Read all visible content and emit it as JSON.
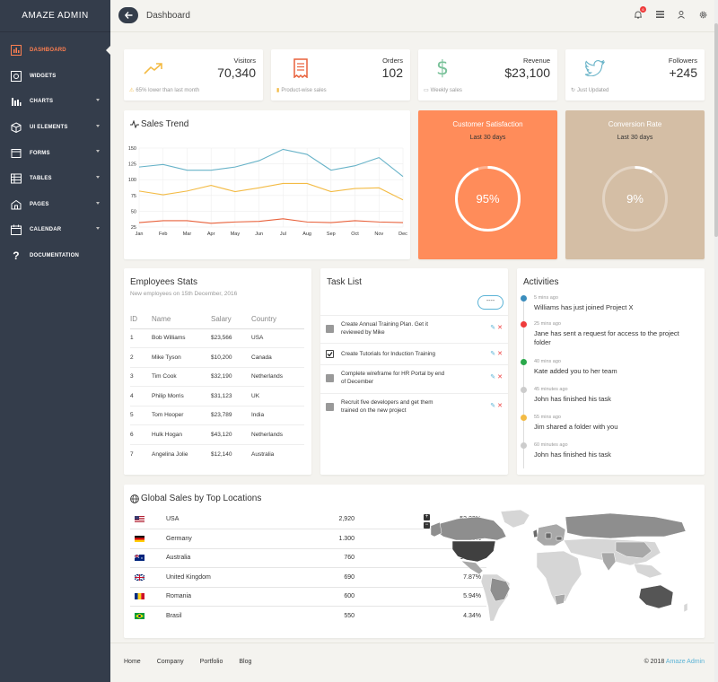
{
  "sidebar": {
    "brand": "AMAZE ADMIN",
    "items": [
      {
        "label": "DASHBOARD",
        "icon": "dashboard-icon",
        "active": true,
        "caret": false
      },
      {
        "label": "WIDGETS",
        "icon": "widgets-icon",
        "active": false,
        "caret": false
      },
      {
        "label": "CHARTS",
        "icon": "charts-icon",
        "active": false,
        "caret": true
      },
      {
        "label": "UI ELEMENTS",
        "icon": "ui-elements-icon",
        "active": false,
        "caret": true
      },
      {
        "label": "FORMS",
        "icon": "forms-icon",
        "active": false,
        "caret": true
      },
      {
        "label": "TABLES",
        "icon": "tables-icon",
        "active": false,
        "caret": true
      },
      {
        "label": "PAGES",
        "icon": "pages-icon",
        "active": false,
        "caret": true
      },
      {
        "label": "CALENDAR",
        "icon": "calendar-icon",
        "active": false,
        "caret": true
      },
      {
        "label": "DOCUMENTATION",
        "icon": "question-icon",
        "active": false,
        "caret": false
      }
    ]
  },
  "header": {
    "title": "Dashboard",
    "notification_count": "6"
  },
  "stats": [
    {
      "label": "Visitors",
      "value": "70,340",
      "foot": "65% lower than last month",
      "icon": "trend-up-icon",
      "color": "#f3bb45"
    },
    {
      "label": "Orders",
      "value": "102",
      "foot": "Product-wise sales",
      "icon": "receipt-icon",
      "color": "#e8613b"
    },
    {
      "label": "Revenue",
      "value": "$23,100",
      "foot": "Weekly sales",
      "icon": "dollar-icon",
      "color": "#7ac29a"
    },
    {
      "label": "Followers",
      "value": "+245",
      "foot": "Just Updated",
      "icon": "twitter-icon",
      "color": "#68b3c8"
    }
  ],
  "sales_trend": {
    "title": "Sales Trend"
  },
  "chart_data": {
    "type": "line",
    "title": "Sales Trend",
    "categories": [
      "Jan",
      "Feb",
      "Mar",
      "Apr",
      "May",
      "Jun",
      "Jul",
      "Aug",
      "Sep",
      "Oct",
      "Nov",
      "Dec"
    ],
    "yticks": [
      150,
      125,
      100,
      75,
      50,
      25
    ],
    "ylim": [
      25,
      150
    ],
    "grid": true,
    "series": [
      {
        "color": "#68b3c8",
        "values": [
          120,
          124,
          115,
          115,
          120,
          130,
          148,
          140,
          115,
          122,
          135,
          105
        ]
      },
      {
        "color": "#f3bb45",
        "values": [
          82,
          76,
          82,
          91,
          81,
          87,
          94,
          94,
          81,
          86,
          87,
          68
        ]
      },
      {
        "color": "#e8613b",
        "values": [
          32,
          35,
          35,
          31,
          33,
          34,
          38,
          33,
          32,
          35,
          33,
          32
        ]
      }
    ]
  },
  "satisfaction": {
    "title": "Customer Satisfaction",
    "sub": "Last 30 days",
    "percent": "95%",
    "fraction": 0.95,
    "color": "#ff8c5a"
  },
  "conversion": {
    "title": "Conversion Rate",
    "sub": "Last 30 days",
    "percent": "9%",
    "fraction": 0.09,
    "color": "#d4bea5"
  },
  "employees": {
    "title": "Employees Stats",
    "sub": "New employees on 15th December, 2016",
    "headers": [
      "ID",
      "Name",
      "Salary",
      "Country"
    ],
    "rows": [
      [
        "1",
        "Bob Williams",
        "$23,566",
        "USA"
      ],
      [
        "2",
        "Mike Tyson",
        "$10,200",
        "Canada"
      ],
      [
        "3",
        "Tim Cook",
        "$32,190",
        "Netherlands"
      ],
      [
        "4",
        "Philip Morris",
        "$31,123",
        "UK"
      ],
      [
        "5",
        "Tom Hooper",
        "$23,789",
        "India"
      ],
      [
        "6",
        "Hulk Hogan",
        "$43,120",
        "Netherlands"
      ],
      [
        "7",
        "Angelina Jolie",
        "$12,140",
        "Australia"
      ]
    ]
  },
  "tasks": {
    "title": "Task List",
    "button": "----",
    "items": [
      {
        "text": "Create Annual Training Plan. Get it reviewed by Mike",
        "checked": false
      },
      {
        "text": "Create Tutorials for Induction Training",
        "checked": true
      },
      {
        "text": "Complete wireframe for HR Portal by end of December",
        "checked": false
      },
      {
        "text": "Recruit five developers and get them trained on the new project",
        "checked": false
      }
    ]
  },
  "activities": {
    "title": "Activities",
    "items": [
      {
        "time": "5 mins ago",
        "msg": "Williams has just joined Project X",
        "color": "#3b8dbd"
      },
      {
        "time": "25 mins ago",
        "msg": "Jane has sent a request for access to the project folder",
        "color": "#ef3b3b"
      },
      {
        "time": "40 mins ago",
        "msg": "Kate added you to her team",
        "color": "#2aa84a"
      },
      {
        "time": "45 minutes ago",
        "msg": "John has finished his task",
        "color": "#cccccc"
      },
      {
        "time": "55 mins ago",
        "msg": "Jim shared a folder with you",
        "color": "#f3bb45"
      },
      {
        "time": "60 minutes ago",
        "msg": "John has finished his task",
        "color": "#cccccc"
      }
    ]
  },
  "global_sales": {
    "title": "Global Sales by Top Locations",
    "zoom_in": "+",
    "zoom_out": "−",
    "rows": [
      {
        "country": "USA",
        "value": "2,920",
        "pct": "53.23%",
        "flag": "us-flag"
      },
      {
        "country": "Germany",
        "value": "1.300",
        "pct": "20.43%",
        "flag": "de-flag"
      },
      {
        "country": "Australia",
        "value": "760",
        "pct": "10.35%",
        "flag": "au-flag"
      },
      {
        "country": "United Kingdom",
        "value": "690",
        "pct": "7.87%",
        "flag": "gb-flag"
      },
      {
        "country": "Romania",
        "value": "600",
        "pct": "5.94%",
        "flag": "ro-flag"
      },
      {
        "country": "Brasil",
        "value": "550",
        "pct": "4.34%",
        "flag": "br-flag"
      }
    ]
  },
  "footer": {
    "links": [
      "Home",
      "Company",
      "Portfolio",
      "Blog"
    ],
    "copyright_prefix": "© 2018",
    "copyright_brand": "Amaze Admin"
  }
}
